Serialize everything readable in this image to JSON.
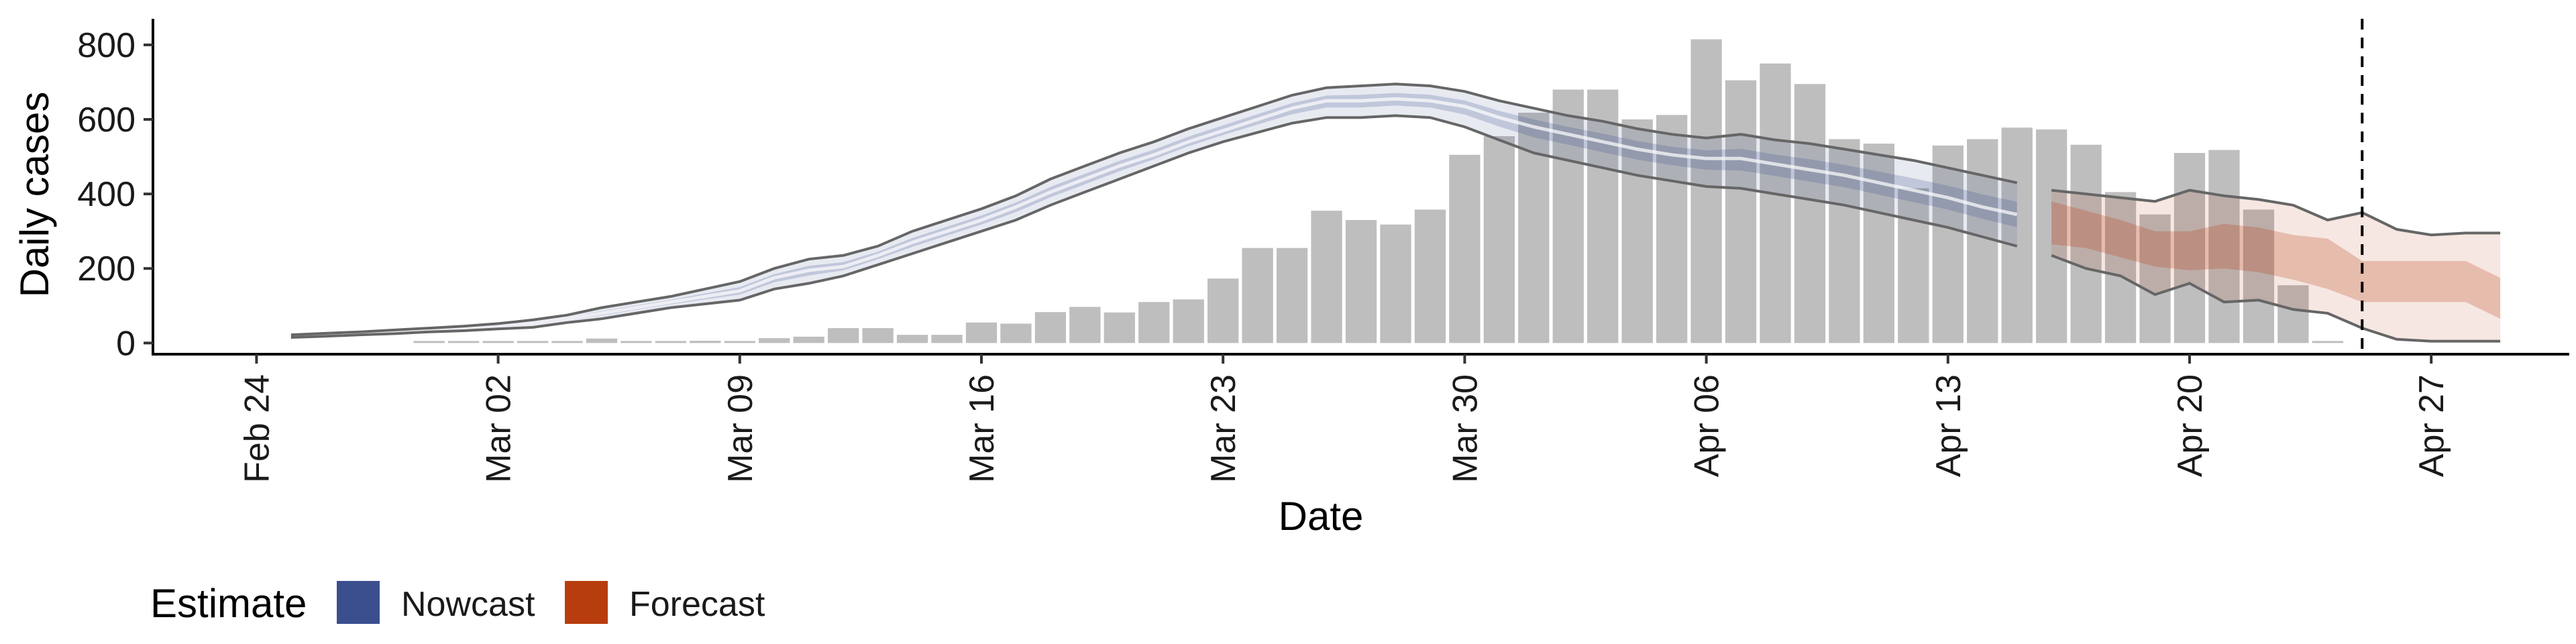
{
  "chart_data": {
    "type": "bar",
    "xlabel": "Date",
    "ylabel": "Daily cases",
    "ylim": [
      -30,
      870
    ],
    "xlim": [
      "2020-02-21",
      "2020-05-01"
    ],
    "y_ticks": [
      0,
      200,
      400,
      600,
      800
    ],
    "x_ticks": [
      {
        "date": "2020-02-24",
        "label": "Feb 24"
      },
      {
        "date": "2020-03-02",
        "label": "Mar 02"
      },
      {
        "date": "2020-03-09",
        "label": "Mar 09"
      },
      {
        "date": "2020-03-16",
        "label": "Mar 16"
      },
      {
        "date": "2020-03-23",
        "label": "Mar 23"
      },
      {
        "date": "2020-03-30",
        "label": "Mar 30"
      },
      {
        "date": "2020-04-06",
        "label": "Apr 06"
      },
      {
        "date": "2020-04-13",
        "label": "Apr 13"
      },
      {
        "date": "2020-04-20",
        "label": "Apr 20"
      },
      {
        "date": "2020-04-27",
        "label": "Apr 27"
      }
    ],
    "grid": false,
    "legend_position": "bottom-left",
    "vline_date": "2020-04-25",
    "colors": {
      "bars": "#bebebe",
      "nowcast": "#3b4f8f",
      "forecast": "#b83d0e",
      "bound_lines": "#666666",
      "vline": "#000000"
    },
    "observed_cases": {
      "x": [
        "2020-02-24",
        "2020-02-25",
        "2020-02-26",
        "2020-02-27",
        "2020-02-28",
        "2020-02-29",
        "2020-03-01",
        "2020-03-02",
        "2020-03-03",
        "2020-03-04",
        "2020-03-05",
        "2020-03-06",
        "2020-03-07",
        "2020-03-08",
        "2020-03-09",
        "2020-03-10",
        "2020-03-11",
        "2020-03-12",
        "2020-03-13",
        "2020-03-14",
        "2020-03-15",
        "2020-03-16",
        "2020-03-17",
        "2020-03-18",
        "2020-03-19",
        "2020-03-20",
        "2020-03-21",
        "2020-03-22",
        "2020-03-23",
        "2020-03-24",
        "2020-03-25",
        "2020-03-26",
        "2020-03-27",
        "2020-03-28",
        "2020-03-29",
        "2020-03-30",
        "2020-03-31",
        "2020-04-01",
        "2020-04-02",
        "2020-04-03",
        "2020-04-04",
        "2020-04-05",
        "2020-04-06",
        "2020-04-07",
        "2020-04-08",
        "2020-04-09",
        "2020-04-10",
        "2020-04-11",
        "2020-04-12",
        "2020-04-13",
        "2020-04-14",
        "2020-04-15",
        "2020-04-16",
        "2020-04-17",
        "2020-04-18",
        "2020-04-19",
        "2020-04-20",
        "2020-04-21",
        "2020-04-22",
        "2020-04-23",
        "2020-04-24"
      ],
      "values": [
        0,
        0,
        0,
        0,
        0,
        1,
        5,
        4,
        2,
        5,
        12,
        3,
        5,
        6,
        5,
        13,
        17,
        40,
        40,
        22,
        22,
        55,
        52,
        83,
        97,
        82,
        110,
        117,
        173,
        255,
        255,
        355,
        330,
        318,
        358,
        505,
        555,
        618,
        680,
        680,
        600,
        612,
        815,
        705,
        750,
        695,
        547,
        535,
        415,
        530,
        547,
        578,
        573,
        532,
        405,
        345,
        510,
        518,
        358,
        155,
        5
      ]
    },
    "nowcast": {
      "x": [
        "2020-02-25",
        "2020-02-26",
        "2020-02-27",
        "2020-02-28",
        "2020-02-29",
        "2020-03-01",
        "2020-03-02",
        "2020-03-03",
        "2020-03-04",
        "2020-03-05",
        "2020-03-06",
        "2020-03-07",
        "2020-03-08",
        "2020-03-09",
        "2020-03-10",
        "2020-03-11",
        "2020-03-12",
        "2020-03-13",
        "2020-03-14",
        "2020-03-15",
        "2020-03-16",
        "2020-03-17",
        "2020-03-18",
        "2020-03-19",
        "2020-03-20",
        "2020-03-21",
        "2020-03-22",
        "2020-03-23",
        "2020-03-24",
        "2020-03-25",
        "2020-03-26",
        "2020-03-27",
        "2020-03-28",
        "2020-03-29",
        "2020-03-30",
        "2020-03-31",
        "2020-04-01",
        "2020-04-02",
        "2020-04-03",
        "2020-04-04",
        "2020-04-05",
        "2020-04-06",
        "2020-04-07",
        "2020-04-08",
        "2020-04-09",
        "2020-04-10",
        "2020-04-11",
        "2020-04-12",
        "2020-04-13",
        "2020-04-14",
        "2020-04-15"
      ],
      "median": [
        18,
        22,
        26,
        30,
        35,
        38,
        45,
        52,
        65,
        80,
        95,
        110,
        125,
        140,
        175,
        195,
        205,
        235,
        270,
        300,
        330,
        365,
        405,
        440,
        475,
        505,
        540,
        570,
        600,
        630,
        650,
        650,
        655,
        650,
        635,
        605,
        580,
        560,
        540,
        520,
        505,
        495,
        495,
        480,
        465,
        450,
        430,
        410,
        390,
        365,
        345
      ],
      "lower_90": [
        15,
        18,
        22,
        25,
        30,
        33,
        38,
        42,
        55,
        65,
        80,
        95,
        105,
        115,
        145,
        160,
        180,
        210,
        240,
        270,
        300,
        330,
        370,
        405,
        440,
        475,
        510,
        540,
        565,
        590,
        605,
        605,
        610,
        605,
        580,
        545,
        510,
        490,
        470,
        450,
        435,
        420,
        415,
        400,
        385,
        370,
        350,
        330,
        310,
        285,
        260
      ],
      "upper_90": [
        22,
        26,
        30,
        35,
        40,
        45,
        52,
        62,
        75,
        95,
        110,
        125,
        145,
        165,
        200,
        225,
        235,
        260,
        300,
        330,
        360,
        395,
        440,
        475,
        510,
        540,
        575,
        605,
        635,
        665,
        685,
        690,
        695,
        690,
        675,
        650,
        630,
        610,
        595,
        575,
        560,
        550,
        560,
        545,
        535,
        520,
        505,
        490,
        470,
        450,
        430
      ]
    },
    "forecast": {
      "x": [
        "2020-04-16",
        "2020-04-17",
        "2020-04-18",
        "2020-04-19",
        "2020-04-20",
        "2020-04-21",
        "2020-04-22",
        "2020-04-23",
        "2020-04-24",
        "2020-04-25",
        "2020-04-26",
        "2020-04-27",
        "2020-04-28",
        "2020-04-29"
      ],
      "median": [
        300,
        290,
        265,
        250,
        235,
        240,
        235,
        215,
        195,
        150,
        130,
        125,
        120,
        115
      ],
      "lower_50": [
        265,
        255,
        230,
        205,
        195,
        200,
        190,
        170,
        145,
        110,
        110,
        110,
        110,
        65
      ],
      "upper_50": [
        380,
        355,
        330,
        300,
        300,
        320,
        310,
        290,
        280,
        220,
        220,
        220,
        220,
        175
      ],
      "lower_90": [
        235,
        200,
        180,
        130,
        160,
        110,
        115,
        90,
        80,
        40,
        10,
        5,
        5,
        5
      ],
      "upper_90": [
        410,
        400,
        390,
        380,
        410,
        395,
        385,
        370,
        330,
        350,
        305,
        290,
        295,
        295
      ]
    }
  }
}
